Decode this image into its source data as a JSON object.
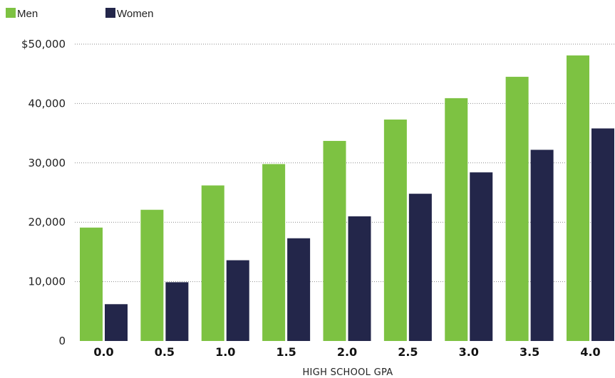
{
  "chart_data": {
    "type": "bar",
    "categories": [
      "0.0",
      "0.5",
      "1.0",
      "1.5",
      "2.0",
      "2.5",
      "3.0",
      "3.5",
      "4.0"
    ],
    "series": [
      {
        "name": "Men",
        "color": "#7dc242",
        "values": [
          19100,
          22100,
          26200,
          29800,
          33700,
          37300,
          40900,
          44500,
          48100
        ]
      },
      {
        "name": "Women",
        "color": "#23264a",
        "values": [
          6200,
          9900,
          13600,
          17300,
          21000,
          24800,
          28400,
          32200,
          35800
        ]
      }
    ],
    "y_ticks": [
      {
        "value": 0,
        "label": "0"
      },
      {
        "value": 10000,
        "label": "10,000"
      },
      {
        "value": 20000,
        "label": "20,000"
      },
      {
        "value": 30000,
        "label": "30,000"
      },
      {
        "value": 40000,
        "label": "40,000"
      },
      {
        "value": 50000,
        "label": "$50,000"
      }
    ],
    "ylim": [
      0,
      50000
    ],
    "xlabel": "HIGH SCHOOL GPA",
    "ylabel": "",
    "title": "",
    "grid": true,
    "legend_position": "top-left"
  }
}
